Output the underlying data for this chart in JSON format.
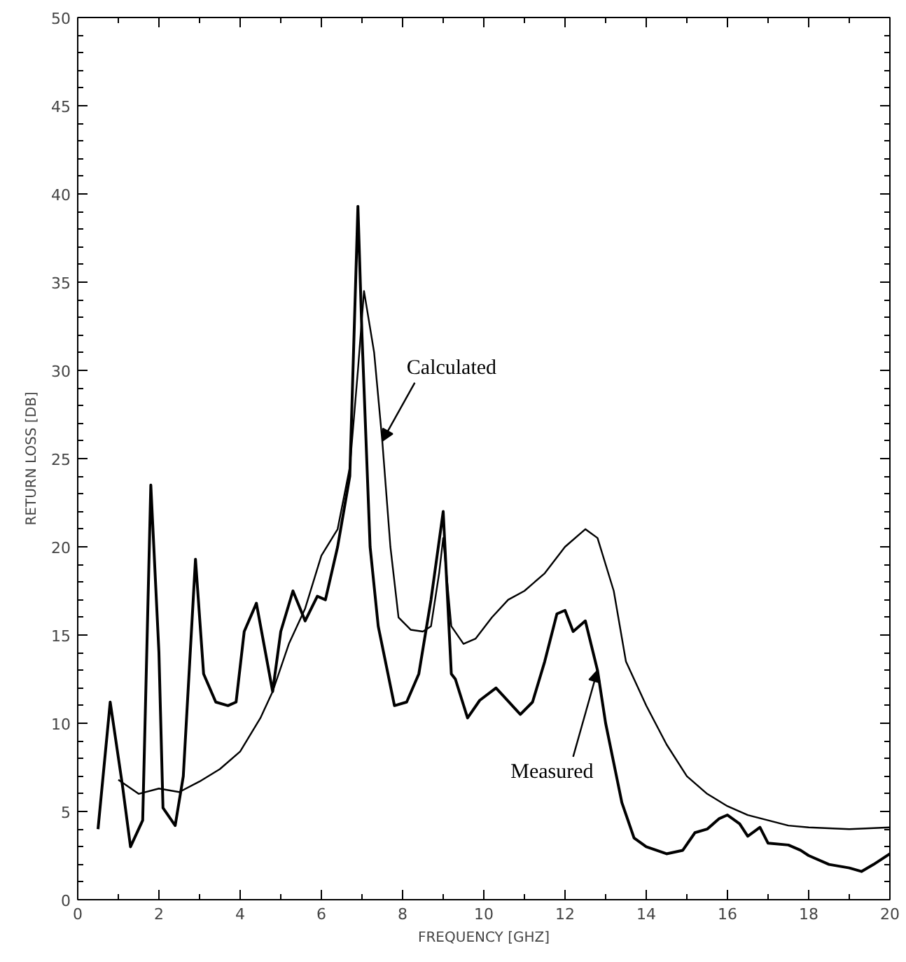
{
  "chart_data": {
    "type": "line",
    "xlabel": "FREQUENCY [GHZ]",
    "ylabel": "RETURN LOSS [DB]",
    "xlim": [
      0,
      20
    ],
    "ylim": [
      0,
      50
    ],
    "xticks": [
      0,
      2,
      4,
      6,
      8,
      10,
      12,
      14,
      16,
      18,
      20
    ],
    "yticks": [
      0,
      5,
      10,
      15,
      20,
      25,
      30,
      35,
      40,
      45,
      50
    ],
    "grid": false,
    "legend": false,
    "series": [
      {
        "name": "Measured",
        "color": "#000000",
        "x": [
          0.5,
          0.8,
          1.1,
          1.3,
          1.6,
          1.8,
          2.0,
          2.1,
          2.4,
          2.6,
          2.9,
          3.1,
          3.4,
          3.7,
          3.9,
          4.1,
          4.4,
          4.8,
          5.0,
          5.3,
          5.6,
          5.9,
          6.1,
          6.4,
          6.7,
          6.9,
          7.0,
          7.2,
          7.4,
          7.8,
          8.1,
          8.4,
          8.7,
          9.0,
          9.2,
          9.3,
          9.6,
          9.9,
          10.3,
          10.5,
          10.9,
          11.2,
          11.5,
          11.8,
          12.0,
          12.2,
          12.5,
          12.8,
          13.0,
          13.4,
          13.7,
          14.0,
          14.5,
          14.9,
          15.2,
          15.5,
          15.8,
          16.0,
          16.3,
          16.5,
          16.8,
          17.0,
          17.5,
          17.8,
          18.0,
          18.5,
          19.0,
          19.3,
          19.6,
          20.0
        ],
        "values": [
          4,
          11.2,
          6.5,
          3,
          4.5,
          23.5,
          14,
          5.2,
          4.2,
          7,
          19.3,
          12.8,
          11.2,
          11,
          11.2,
          15.2,
          16.8,
          11.8,
          15.2,
          17.5,
          15.8,
          17.2,
          17,
          20,
          24,
          39.3,
          32,
          20,
          15.5,
          11,
          11.2,
          12.8,
          17,
          22,
          12.8,
          12.5,
          10.3,
          11.3,
          12,
          11.5,
          10.5,
          11.2,
          13.5,
          16.2,
          16.4,
          15.2,
          15.8,
          13,
          10,
          5.5,
          3.5,
          3,
          2.6,
          2.8,
          3.8,
          4,
          4.6,
          4.8,
          4.3,
          3.6,
          4.1,
          3.2,
          3.1,
          2.8,
          2.5,
          2,
          1.8,
          1.6,
          2,
          2.6
        ]
      },
      {
        "name": "Calculated",
        "color": "#000000",
        "x": [
          1.0,
          1.5,
          2.0,
          2.5,
          3.0,
          3.5,
          4.0,
          4.5,
          4.8,
          5.2,
          5.6,
          6.0,
          6.4,
          6.7,
          6.9,
          7.05,
          7.3,
          7.5,
          7.7,
          7.9,
          8.2,
          8.5,
          8.7,
          8.9,
          9.0,
          9.2,
          9.5,
          9.8,
          10.2,
          10.6,
          11.0,
          11.5,
          12.0,
          12.5,
          12.8,
          13.2,
          13.5,
          14.0,
          14.5,
          15.0,
          15.5,
          16.0,
          16.5,
          17.0,
          17.5,
          18.0,
          19.0,
          20.0
        ],
        "values": [
          6.8,
          6,
          6.3,
          6.1,
          6.7,
          7.4,
          8.4,
          10.3,
          11.8,
          14.5,
          16.5,
          19.5,
          21,
          24.5,
          30,
          34.5,
          31,
          26,
          20,
          16,
          15.3,
          15.2,
          15.5,
          18.5,
          20.5,
          15.5,
          14.5,
          14.8,
          16,
          17,
          17.5,
          18.5,
          20,
          21,
          20.5,
          17.5,
          13.5,
          11,
          8.8,
          7,
          6,
          5.3,
          4.8,
          4.5,
          4.2,
          4.1,
          4.0,
          4.1
        ]
      }
    ]
  }
}
